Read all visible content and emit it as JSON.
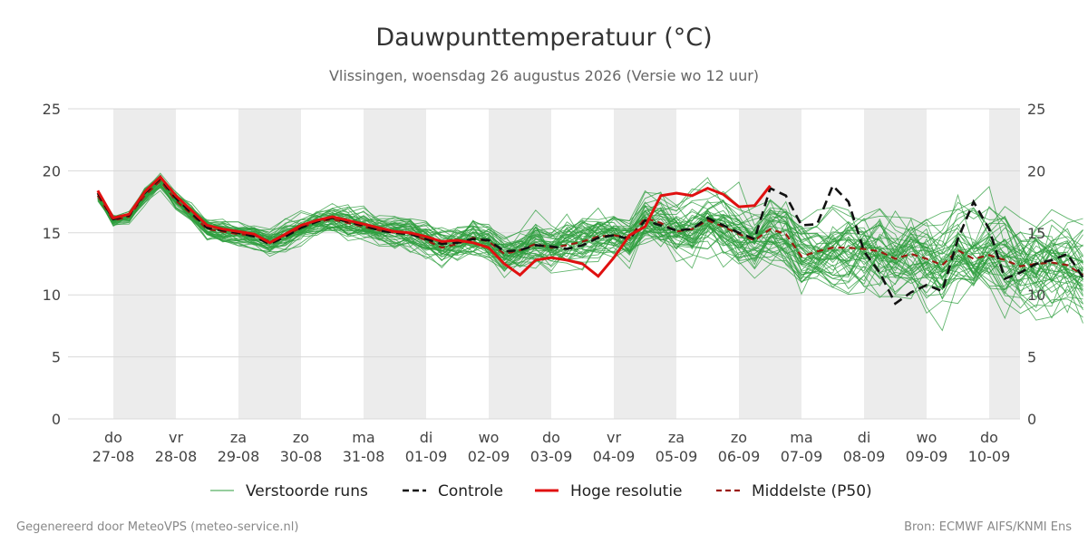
{
  "chart_data": {
    "type": "line",
    "title": "Dauwpunttemperatuur (°C)",
    "subtitle": "Vlissingen, woensdag 26 augustus 2026 (Versie wo 12 uur)",
    "ylim": [
      0,
      25
    ],
    "yticks": [
      0,
      5,
      10,
      15,
      20,
      25
    ],
    "grid": true,
    "shaded_days": [
      1,
      3,
      5,
      7,
      9,
      11,
      13,
      15
    ],
    "x_day_labels": [
      {
        "day": "do",
        "date": "27-08"
      },
      {
        "day": "vr",
        "date": "28-08"
      },
      {
        "day": "za",
        "date": "29-08"
      },
      {
        "day": "zo",
        "date": "30-08"
      },
      {
        "day": "ma",
        "date": "31-08"
      },
      {
        "day": "di",
        "date": "01-09"
      },
      {
        "day": "wo",
        "date": "02-09"
      },
      {
        "day": "do",
        "date": "03-09"
      },
      {
        "day": "vr",
        "date": "04-09"
      },
      {
        "day": "za",
        "date": "05-09"
      },
      {
        "day": "zo",
        "date": "06-09"
      },
      {
        "day": "ma",
        "date": "07-09"
      },
      {
        "day": "di",
        "date": "08-09"
      },
      {
        "day": "wo",
        "date": "09-09"
      },
      {
        "day": "do",
        "date": "10-09"
      }
    ],
    "x_start_day": 0.75,
    "x_end_day": 15.5,
    "x_step_days": 0.25,
    "hires_step_days": 0.25,
    "hires_values": [
      18.4,
      16.2,
      16.5,
      18.3,
      19.5,
      18.0,
      16.8,
      15.6,
      15.3,
      15.1,
      14.9,
      14.2,
      14.9,
      15.6,
      16.0,
      16.3,
      16.0,
      15.7,
      15.4,
      15.1,
      15.0,
      14.7,
      14.3,
      14.4,
      14.2,
      13.8,
      12.5,
      11.6,
      12.8,
      13.0,
      12.8,
      12.5,
      11.5,
      13.0,
      14.8,
      15.5,
      18.0,
      18.2,
      18.0,
      18.6,
      18.1,
      17.1,
      17.2,
      18.8
    ],
    "control_values": [
      18.2,
      16.1,
      16.4,
      18.2,
      19.4,
      17.8,
      16.6,
      15.4,
      15.2,
      15.0,
      14.7,
      14.1,
      14.7,
      15.4,
      15.9,
      16.2,
      15.9,
      15.6,
      15.2,
      15.0,
      14.9,
      14.5,
      14.1,
      14.2,
      14.5,
      14.4,
      13.5,
      13.6,
      14.0,
      13.9,
      13.7,
      14.0,
      14.6,
      14.8,
      14.5,
      16.0,
      15.6,
      15.2,
      15.3,
      16.2,
      15.6,
      15.0,
      14.5,
      18.6,
      18.0,
      15.6,
      15.7,
      18.8,
      17.5,
      13.5,
      11.8,
      9.3,
      10.2,
      10.8,
      10.3,
      14.5,
      17.5,
      15.3,
      11.3,
      11.8,
      12.5,
      12.8,
      13.3,
      11.4
    ],
    "p50_values": [
      18.0,
      16.0,
      16.3,
      18.0,
      19.2,
      17.6,
      16.5,
      15.3,
      15.1,
      14.9,
      14.8,
      14.3,
      14.8,
      15.4,
      15.9,
      16.1,
      15.8,
      15.5,
      15.2,
      15.0,
      14.9,
      14.4,
      13.8,
      14.1,
      14.6,
      14.3,
      13.3,
      13.6,
      14.1,
      13.8,
      14.0,
      14.3,
      14.7,
      14.8,
      14.6,
      16.2,
      15.8,
      15.1,
      15.3,
      16.0,
      15.5,
      14.9,
      14.4,
      15.3,
      14.9,
      13.1,
      13.5,
      13.8,
      13.8,
      13.7,
      13.5,
      12.9,
      13.3,
      12.9,
      12.4,
      13.6,
      12.9,
      13.2,
      12.8,
      12.3,
      12.5,
      12.6,
      12.4,
      11.6
    ],
    "ensemble_members": 50,
    "ensemble_seed": 12345,
    "series": [
      {
        "name": "Verstoorde runs",
        "color": "#2e9e3e",
        "style": "thin"
      },
      {
        "name": "Controle",
        "color": "#111111",
        "style": "dashed"
      },
      {
        "name": "Hoge resolutie",
        "color": "#e01010",
        "style": "solid"
      },
      {
        "name": "Middelste (P50)",
        "color": "#9b1a10",
        "style": "dashed"
      }
    ]
  },
  "footer": {
    "left": "Gegenereerd door MeteoVPS (meteo-service.nl)",
    "right": "Bron: ECMWF AIFS/KNMI Ens"
  }
}
